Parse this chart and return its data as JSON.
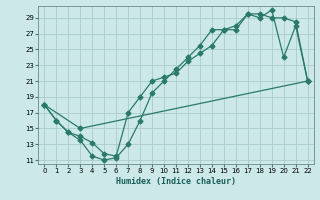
{
  "xlabel": "Humidex (Indice chaleur)",
  "bg_color": "#cce8e8",
  "grid_color": "#aacccc",
  "line_color": "#2a7a6a",
  "xlim": [
    -0.5,
    22.5
  ],
  "ylim": [
    10.5,
    30.5
  ],
  "xticks": [
    0,
    1,
    2,
    3,
    4,
    5,
    6,
    7,
    8,
    9,
    10,
    11,
    12,
    13,
    14,
    15,
    16,
    17,
    18,
    19,
    20,
    21,
    22
  ],
  "yticks": [
    11,
    13,
    15,
    17,
    19,
    21,
    23,
    25,
    27,
    29
  ],
  "line1_x": [
    0,
    1,
    2,
    3,
    4,
    5,
    6,
    7,
    8,
    9,
    10,
    11,
    12,
    13,
    14,
    15,
    16,
    17,
    18,
    19,
    20,
    21,
    22
  ],
  "line1_y": [
    18.0,
    16.0,
    14.5,
    13.5,
    11.5,
    11.0,
    11.3,
    13.0,
    16.0,
    19.5,
    21.0,
    22.5,
    24.0,
    25.5,
    27.5,
    27.5,
    27.5,
    29.5,
    29.0,
    30.0,
    24.0,
    28.0,
    21.0
  ],
  "line2_x": [
    0,
    1,
    2,
    3,
    4,
    5,
    6,
    7,
    8,
    9,
    10,
    11,
    12,
    13,
    14,
    15,
    16,
    17,
    18,
    19,
    20,
    21,
    22
  ],
  "line2_y": [
    18.0,
    16.0,
    14.5,
    14.0,
    13.2,
    11.8,
    11.5,
    17.0,
    19.0,
    21.0,
    21.5,
    22.0,
    23.5,
    24.5,
    25.5,
    27.5,
    28.0,
    29.5,
    29.5,
    29.0,
    29.0,
    28.5,
    21.0
  ],
  "line3_x": [
    0,
    3,
    22
  ],
  "line3_y": [
    18.0,
    15.0,
    21.0
  ]
}
